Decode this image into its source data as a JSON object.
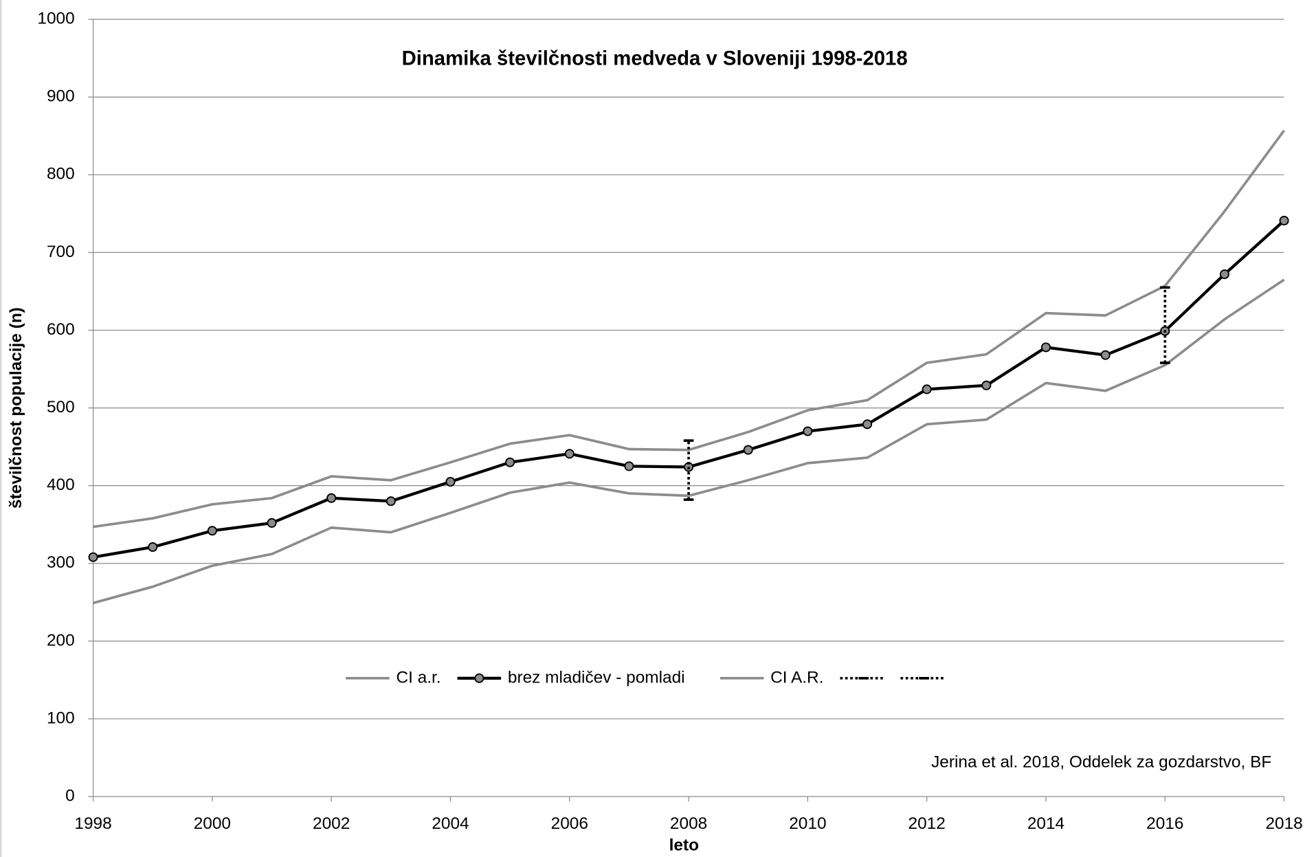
{
  "chart_data": {
    "type": "line",
    "title": "Dinamika številčnosti medveda v Sloveniji 1998-2018",
    "x_label": "leto",
    "y_label": "številčnost populacije (n)",
    "annotation": "Jerina et al. 2018, Oddelek za gozdarstvo, BF",
    "x": [
      1998,
      1999,
      2000,
      2001,
      2002,
      2003,
      2004,
      2005,
      2006,
      2007,
      2008,
      2009,
      2010,
      2011,
      2012,
      2013,
      2014,
      2015,
      2016,
      2017,
      2018
    ],
    "series": [
      {
        "name": "CI a.r.",
        "color": "#8c8c8c",
        "marker": false,
        "values": [
          347,
          358,
          376,
          384,
          412,
          407,
          430,
          454,
          465,
          447,
          446,
          469,
          497,
          510,
          558,
          569,
          622,
          619,
          657,
          753,
          857
        ]
      },
      {
        "name": "brez mladičev - pomladi",
        "color": "#000000",
        "marker": true,
        "values": [
          308,
          321,
          342,
          352,
          384,
          380,
          405,
          430,
          441,
          425,
          424,
          446,
          470,
          479,
          524,
          529,
          578,
          568,
          599,
          672,
          741
        ]
      },
      {
        "name": "CI A.R.",
        "color": "#8c8c8c",
        "marker": false,
        "values": [
          249,
          270,
          297,
          312,
          346,
          340,
          365,
          391,
          404,
          390,
          387,
          407,
          429,
          436,
          479,
          485,
          532,
          522,
          555,
          614,
          665
        ]
      }
    ],
    "error_bars": [
      {
        "x": 2008,
        "low": 382,
        "high": 458
      },
      {
        "x": 2016,
        "low": 558,
        "high": 655
      }
    ],
    "xlim": [
      1998,
      2018
    ],
    "xticks": [
      1998,
      2000,
      2002,
      2004,
      2006,
      2008,
      2010,
      2012,
      2014,
      2016,
      2018
    ],
    "ylim": [
      0,
      1000
    ],
    "yticks": [
      0,
      100,
      200,
      300,
      400,
      500,
      600,
      700,
      800,
      900,
      1000
    ],
    "grid": true,
    "legend": "bottom"
  }
}
